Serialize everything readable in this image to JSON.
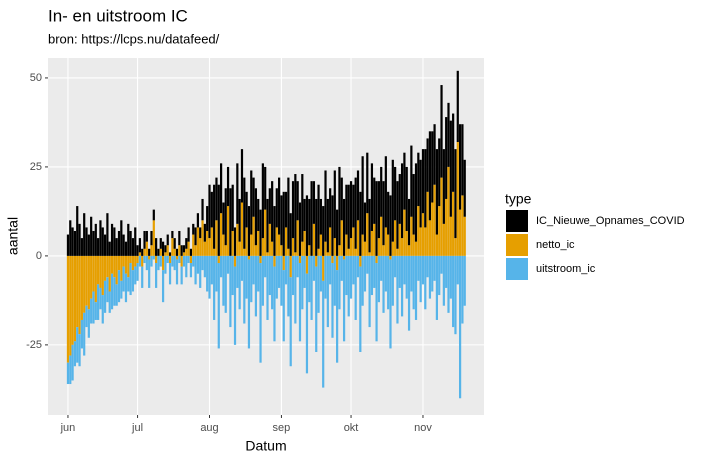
{
  "chart_data": {
    "type": "bar",
    "stacked": true,
    "title": "In- en uitstroom IC",
    "subtitle": "bron: https://lcps.nu/datafeed/",
    "x_label": "Datum",
    "y_label": "aantal",
    "legend_title": "type",
    "legend_position": "right",
    "grid": true,
    "xlim": [
      -8.6,
      179.3
    ],
    "xticks": [
      {
        "value": 0,
        "label": "jun"
      },
      {
        "value": 30,
        "label": "jul"
      },
      {
        "value": 61,
        "label": "aug"
      },
      {
        "value": 92,
        "label": "sep"
      },
      {
        "value": 122,
        "label": "okt"
      },
      {
        "value": 153,
        "label": "nov"
      }
    ],
    "ylim": [
      -44.7,
      55.6
    ],
    "yticks": [
      -25,
      0,
      25,
      50
    ],
    "x": [
      0,
      1,
      2,
      3,
      4,
      5,
      6,
      7,
      8,
      9,
      10,
      11,
      12,
      13,
      14,
      15,
      16,
      17,
      18,
      19,
      20,
      21,
      22,
      23,
      24,
      25,
      26,
      27,
      28,
      29,
      30,
      31,
      32,
      33,
      34,
      35,
      36,
      37,
      38,
      39,
      40,
      41,
      42,
      43,
      44,
      45,
      46,
      47,
      48,
      49,
      50,
      51,
      52,
      53,
      54,
      55,
      56,
      57,
      58,
      59,
      60,
      61,
      62,
      63,
      64,
      65,
      66,
      67,
      68,
      69,
      70,
      71,
      72,
      73,
      74,
      75,
      76,
      77,
      78,
      79,
      80,
      81,
      82,
      83,
      84,
      85,
      86,
      87,
      88,
      89,
      90,
      91,
      92,
      93,
      94,
      95,
      96,
      97,
      98,
      99,
      100,
      101,
      102,
      103,
      104,
      105,
      106,
      107,
      108,
      109,
      110,
      111,
      112,
      113,
      114,
      115,
      116,
      117,
      118,
      119,
      120,
      121,
      122,
      123,
      124,
      125,
      126,
      127,
      128,
      129,
      130,
      131,
      132,
      133,
      134,
      135,
      136,
      137,
      138,
      139,
      140,
      141,
      142,
      143,
      144,
      145,
      146,
      147,
      148,
      149,
      150,
      151,
      152,
      153,
      154,
      155,
      156,
      157,
      158,
      159,
      160,
      161,
      162,
      163,
      164,
      165,
      166,
      167,
      168,
      169,
      170,
      171
    ],
    "series": [
      {
        "name": "IC_Nieuwe_Opnames_COVID",
        "color": "#000000",
        "values": [
          6,
          10,
          8,
          7,
          14,
          9,
          5,
          12,
          8,
          6,
          11,
          7,
          9,
          5,
          10,
          8,
          6,
          12,
          4,
          9,
          8,
          5,
          7,
          10,
          6,
          4,
          9,
          7,
          5,
          8,
          3,
          4,
          2,
          5,
          3,
          2,
          4,
          3,
          5,
          2,
          3,
          4,
          2,
          3,
          1,
          2,
          3,
          2,
          4,
          3,
          2,
          3,
          4,
          2,
          3,
          5,
          4,
          3,
          6,
          5,
          7,
          15,
          10,
          18,
          12,
          20,
          14,
          9,
          16,
          11,
          19,
          13,
          8,
          17,
          12,
          15,
          20,
          10,
          14,
          18,
          11,
          16,
          9,
          13,
          21,
          12,
          15,
          10,
          17,
          14,
          11,
          16,
          14,
          18,
          10,
          20,
          12,
          16,
          22,
          11,
          15,
          19,
          9,
          17,
          13,
          21,
          12,
          16,
          18,
          10,
          14,
          20,
          15,
          11,
          17,
          19,
          13,
          22,
          12,
          16,
          14,
          18,
          16,
          12,
          20,
          14,
          18,
          22,
          11,
          17,
          15,
          19,
          13,
          21,
          16,
          14,
          18,
          20,
          12,
          17,
          23,
          15,
          19,
          14,
          21,
          16,
          18,
          13,
          20,
          17,
          22,
          15,
          19,
          18,
          22,
          15,
          25,
          20,
          17,
          24,
          19,
          26,
          21,
          23,
          18,
          27,
          22,
          25,
          20,
          24,
          20,
          16
        ]
      },
      {
        "name": "netto_ic",
        "color": "#E69F00",
        "values": [
          -30,
          -28,
          -25,
          -24,
          -20,
          -22,
          -18,
          -16,
          -14,
          -15,
          -12,
          -10,
          -13,
          -8,
          -9,
          -11,
          -7,
          -6,
          -10,
          -5,
          -6,
          -8,
          -4,
          -7,
          -3,
          -5,
          -6,
          -2,
          -4,
          -3,
          -2,
          1,
          -3,
          2,
          4,
          -1,
          3,
          10,
          -2,
          0,
          2,
          -4,
          1,
          3,
          -2,
          5,
          2,
          -1,
          3,
          -3,
          1,
          2,
          4,
          -2,
          6,
          3,
          8,
          5,
          10,
          4,
          7,
          5,
          8,
          2,
          10,
          -2,
          12,
          6,
          3,
          14,
          0,
          7,
          -3,
          9,
          4,
          15,
          2,
          8,
          -1,
          6,
          11,
          3,
          7,
          -2,
          5,
          13,
          1,
          9,
          4,
          -3,
          8,
          6,
          3,
          -4,
          8,
          2,
          -6,
          5,
          1,
          10,
          -2,
          4,
          7,
          -5,
          3,
          0,
          9,
          -3,
          2,
          6,
          -7,
          4,
          1,
          8,
          -2,
          5,
          -4,
          3,
          10,
          -1,
          6,
          2,
          5,
          8,
          2,
          10,
          -3,
          6,
          4,
          12,
          1,
          7,
          9,
          -2,
          5,
          11,
          3,
          8,
          6,
          -1,
          4,
          10,
          2,
          9,
          5,
          13,
          7,
          3,
          11,
          6,
          4,
          14,
          8,
          12,
          8,
          18,
          10,
          15,
          20,
          6,
          14,
          22,
          9,
          16,
          25,
          11,
          18,
          5,
          32,
          13,
          17,
          11
        ]
      },
      {
        "name": "uitstroom_ic",
        "color": "#56B4E9",
        "values": [
          -6,
          -8,
          -10,
          -7,
          -10,
          -9,
          -8,
          -12,
          -6,
          -8,
          -7,
          -9,
          -5,
          -10,
          -6,
          -8,
          -9,
          -7,
          -6,
          -10,
          -8,
          -6,
          -9,
          -5,
          -7,
          -8,
          -4,
          -9,
          -6,
          -5,
          -5,
          -3,
          -6,
          -2,
          -4,
          -8,
          -3,
          -1,
          -7,
          -4,
          -3,
          -9,
          -5,
          -2,
          -6,
          -3,
          -4,
          -7,
          -2,
          -5,
          -3,
          -6,
          -2,
          -4,
          -3,
          -8,
          -5,
          -9,
          -4,
          -6,
          -10,
          -12,
          -8,
          -18,
          -10,
          -24,
          -6,
          -14,
          -16,
          -5,
          -20,
          -11,
          -22,
          -9,
          -15,
          -7,
          -19,
          -12,
          -25,
          -13,
          -8,
          -17,
          -10,
          -28,
          -14,
          -6,
          -18,
          -11,
          -15,
          -21,
          -12,
          -9,
          -14,
          -20,
          -8,
          -17,
          -25,
          -11,
          -19,
          -6,
          -22,
          -15,
          -9,
          -28,
          -13,
          -18,
          -7,
          -24,
          -16,
          -10,
          -30,
          -12,
          -20,
          -8,
          -21,
          -14,
          -26,
          -15,
          -7,
          -23,
          -11,
          -17,
          -12,
          -8,
          -18,
          -6,
          -24,
          -14,
          -10,
          -5,
          -20,
          -11,
          -9,
          -22,
          -13,
          -7,
          -16,
          -10,
          -15,
          -25,
          -14,
          -6,
          -19,
          -9,
          -17,
          -8,
          -12,
          -21,
          -10,
          -15,
          -18,
          -7,
          -13,
          -8,
          -15,
          -6,
          -12,
          -10,
          -7,
          -18,
          -11,
          -5,
          -14,
          -9,
          -16,
          -12,
          -20,
          -22,
          -8,
          -40,
          -19,
          -14
        ]
      }
    ]
  }
}
